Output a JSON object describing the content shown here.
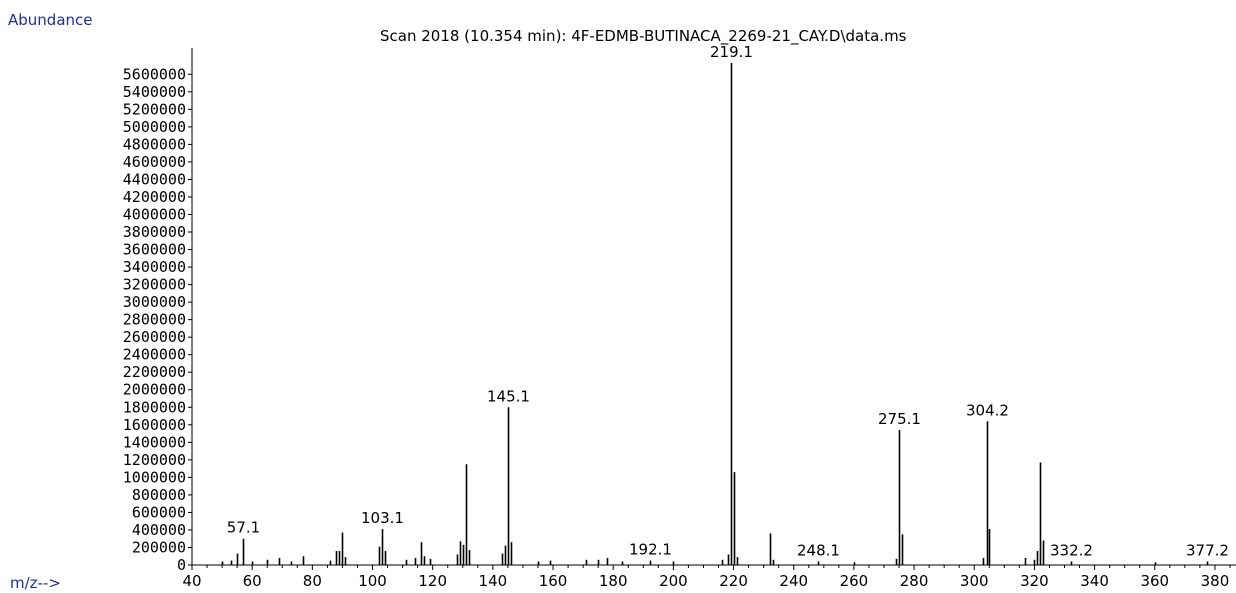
{
  "chart_data": {
    "type": "bar",
    "title": "Scan 2018 (10.354 min): 4F-EDMB-BUTINACA_2269-21_CAY.D\\data.ms",
    "ylabel": "Abundance",
    "xlabel": "m/z-->",
    "xlim": [
      40,
      387
    ],
    "ylim": [
      0,
      5900000
    ],
    "x_ticks": [
      40,
      60,
      80,
      100,
      120,
      140,
      160,
      180,
      200,
      220,
      240,
      260,
      280,
      300,
      320,
      340,
      360,
      380
    ],
    "y_ticks": [
      0,
      200000,
      400000,
      600000,
      800000,
      1000000,
      1200000,
      1400000,
      1600000,
      1800000,
      2000000,
      2200000,
      2400000,
      2600000,
      2800000,
      3000000,
      3200000,
      3400000,
      3600000,
      3800000,
      4000000,
      4200000,
      4400000,
      4600000,
      4800000,
      5000000,
      5200000,
      5400000,
      5600000
    ],
    "grid": false,
    "peaks": [
      {
        "mz": 50,
        "abundance": 40000
      },
      {
        "mz": 53,
        "abundance": 50000
      },
      {
        "mz": 55,
        "abundance": 130000
      },
      {
        "mz": 57.1,
        "abundance": 300000,
        "label": "57.1"
      },
      {
        "mz": 60,
        "abundance": 40000
      },
      {
        "mz": 65,
        "abundance": 60000
      },
      {
        "mz": 69,
        "abundance": 80000
      },
      {
        "mz": 73,
        "abundance": 40000
      },
      {
        "mz": 77,
        "abundance": 100000
      },
      {
        "mz": 86,
        "abundance": 50000
      },
      {
        "mz": 88,
        "abundance": 160000
      },
      {
        "mz": 89,
        "abundance": 160000
      },
      {
        "mz": 90,
        "abundance": 370000
      },
      {
        "mz": 91,
        "abundance": 90000
      },
      {
        "mz": 102,
        "abundance": 210000
      },
      {
        "mz": 103.1,
        "abundance": 410000,
        "label": "103.1"
      },
      {
        "mz": 104,
        "abundance": 160000
      },
      {
        "mz": 111,
        "abundance": 60000
      },
      {
        "mz": 114,
        "abundance": 80000
      },
      {
        "mz": 116,
        "abundance": 260000
      },
      {
        "mz": 117,
        "abundance": 100000
      },
      {
        "mz": 119,
        "abundance": 70000
      },
      {
        "mz": 128,
        "abundance": 120000
      },
      {
        "mz": 129,
        "abundance": 270000
      },
      {
        "mz": 130,
        "abundance": 230000
      },
      {
        "mz": 131,
        "abundance": 1150000
      },
      {
        "mz": 132,
        "abundance": 170000
      },
      {
        "mz": 143,
        "abundance": 130000
      },
      {
        "mz": 144,
        "abundance": 220000
      },
      {
        "mz": 145.1,
        "abundance": 1800000,
        "label": "145.1"
      },
      {
        "mz": 146,
        "abundance": 260000
      },
      {
        "mz": 155,
        "abundance": 40000
      },
      {
        "mz": 159,
        "abundance": 50000
      },
      {
        "mz": 171,
        "abundance": 60000
      },
      {
        "mz": 175,
        "abundance": 60000
      },
      {
        "mz": 178,
        "abundance": 80000
      },
      {
        "mz": 183,
        "abundance": 40000
      },
      {
        "mz": 192.1,
        "abundance": 50000,
        "label": "192.1"
      },
      {
        "mz": 200,
        "abundance": 40000
      },
      {
        "mz": 216,
        "abundance": 60000
      },
      {
        "mz": 218,
        "abundance": 120000
      },
      {
        "mz": 219.1,
        "abundance": 5730000,
        "label": "219.1"
      },
      {
        "mz": 220,
        "abundance": 1060000
      },
      {
        "mz": 221,
        "abundance": 90000
      },
      {
        "mz": 232,
        "abundance": 360000
      },
      {
        "mz": 233,
        "abundance": 60000
      },
      {
        "mz": 248.1,
        "abundance": 40000,
        "label": "248.1"
      },
      {
        "mz": 260,
        "abundance": 30000
      },
      {
        "mz": 274,
        "abundance": 70000
      },
      {
        "mz": 275.1,
        "abundance": 1540000,
        "label": "275.1"
      },
      {
        "mz": 276,
        "abundance": 350000
      },
      {
        "mz": 303,
        "abundance": 80000
      },
      {
        "mz": 304.2,
        "abundance": 1640000,
        "label": "304.2"
      },
      {
        "mz": 305,
        "abundance": 410000
      },
      {
        "mz": 317,
        "abundance": 80000
      },
      {
        "mz": 320,
        "abundance": 60000
      },
      {
        "mz": 321,
        "abundance": 160000
      },
      {
        "mz": 322,
        "abundance": 1170000
      },
      {
        "mz": 323,
        "abundance": 280000
      },
      {
        "mz": 332.2,
        "abundance": 40000,
        "label": "332.2"
      },
      {
        "mz": 360,
        "abundance": 30000
      },
      {
        "mz": 377.2,
        "abundance": 40000,
        "label": "377.2"
      }
    ]
  },
  "colors": {
    "axis_label": "#1a2fa0",
    "bars": "#000000",
    "background": "#ffffff"
  }
}
